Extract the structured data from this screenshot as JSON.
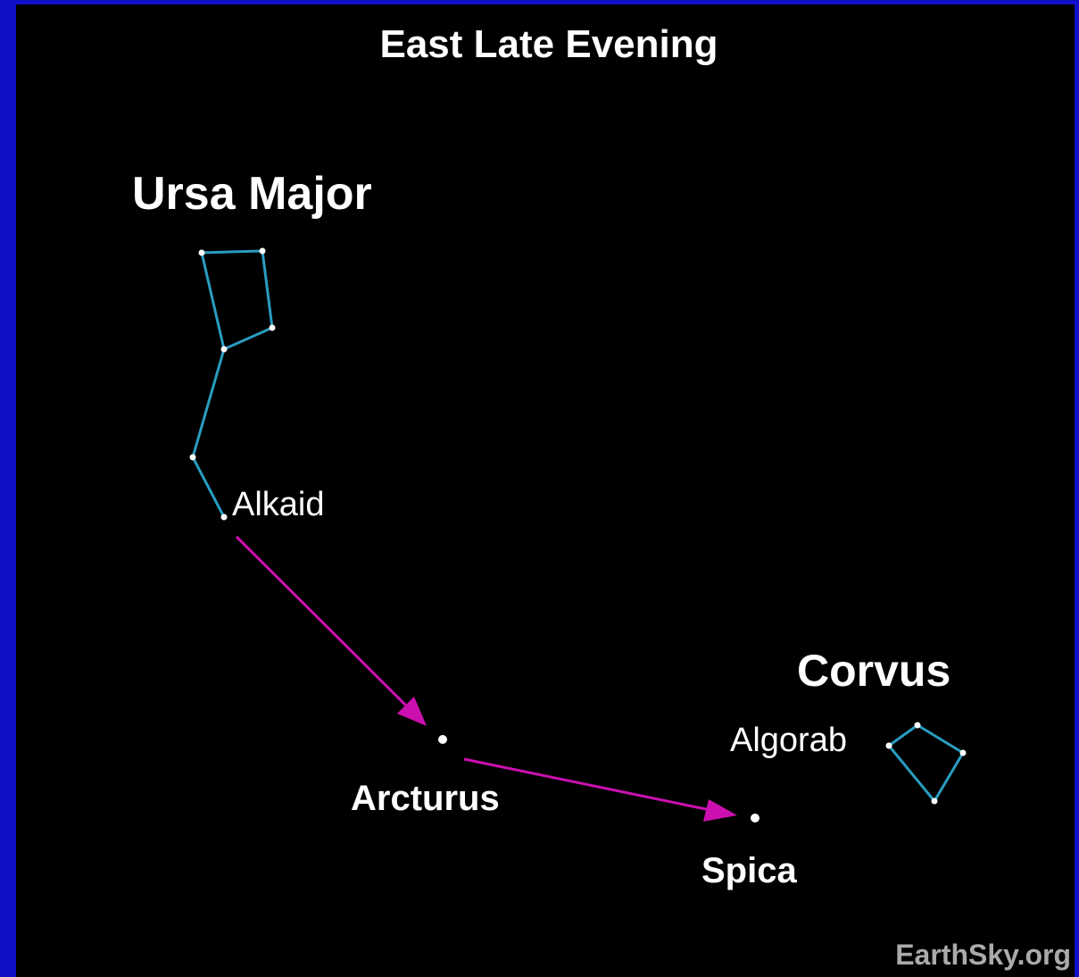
{
  "title": "East Late Evening",
  "constellations": [
    {
      "label": "Ursa Major"
    },
    {
      "label": "Corvus"
    }
  ],
  "stars": [
    {
      "label": "Alkaid"
    },
    {
      "label": "Arcturus"
    },
    {
      "label": "Spica"
    },
    {
      "label": "Algorab"
    }
  ],
  "credit": "EarthSky.org"
}
